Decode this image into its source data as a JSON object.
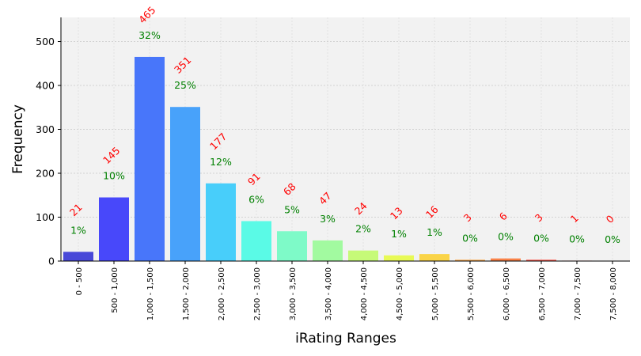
{
  "chart_data": {
    "type": "bar",
    "xlabel": "iRating Ranges",
    "ylabel": "Frequency",
    "ylim": [
      0,
      555
    ],
    "yticks": [
      0,
      100,
      200,
      300,
      400,
      500
    ],
    "grid": true,
    "categories": [
      "0 - 500",
      "500 - 1,000",
      "1,000 - 1,500",
      "1,500 - 2,000",
      "2,000 - 2,500",
      "2,500 - 3,000",
      "3,000 - 3,500",
      "3,500 - 4,000",
      "4,000 - 4,500",
      "4,500 - 5,000",
      "5,000 - 5,500",
      "5,500 - 6,000",
      "6,000 - 6,500",
      "6,500 - 7,000",
      "7,000 - 7,500",
      "7,500 - 8,000"
    ],
    "values": [
      21,
      145,
      465,
      351,
      177,
      91,
      68,
      47,
      24,
      13,
      16,
      3,
      6,
      3,
      1,
      0
    ],
    "count_labels": [
      "21",
      "145",
      "465",
      "351",
      "177",
      "91",
      "68",
      "47",
      "24",
      "13",
      "16",
      "3",
      "6",
      "3",
      "1",
      "0"
    ],
    "percent_labels": [
      "1%",
      "10%",
      "32%",
      "25%",
      "12%",
      "6%",
      "5%",
      "3%",
      "2%",
      "1%",
      "1%",
      "0%",
      "0%",
      "0%",
      "0%",
      "0%"
    ],
    "colors": [
      "#4848d8",
      "#4848fa",
      "#4876fa",
      "#48a2fa",
      "#48cefa",
      "#5afae6",
      "#7efac8",
      "#a2faa0",
      "#c6fa78",
      "#e8fa56",
      "#fad448",
      "#faa848",
      "#fa8248",
      "#fa5448",
      "#fa4848",
      "#fa4848"
    ],
    "count_label_color": "#ff0000",
    "percent_label_color": "#008000"
  }
}
